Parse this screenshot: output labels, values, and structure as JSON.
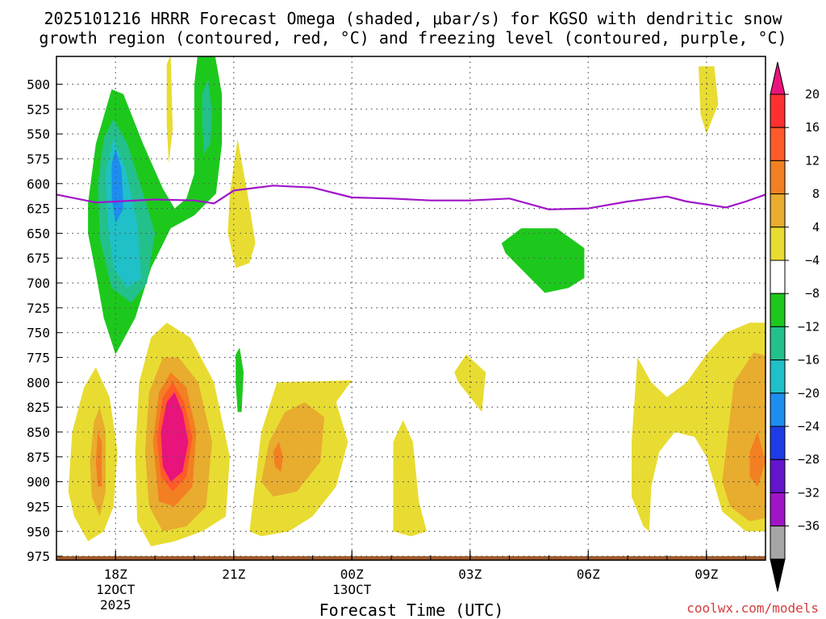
{
  "title": {
    "line1": "2025101216 HRRR Forecast Omega (shaded, μbar/s) for KGSO with dendritic snow",
    "line2": "growth region (contoured, red, °C) and freezing level (contoured, purple, °C)"
  },
  "credit": "coolwx.com/models",
  "chart_data": {
    "type": "heatmap",
    "title": "2025101216 HRRR Forecast Omega (shaded, μbar/s) for KGSO with dendritic snow growth region (contoured, red, °C) and freezing level (contoured, purple, °C)",
    "xlabel": "Forecast Time (UTC)",
    "ylabel": "",
    "x_unit": "hours since 2025-10-12 16Z",
    "xlim": [
      0.5,
      18.5
    ],
    "ylim": [
      979,
      472
    ],
    "x_ticks": [
      {
        "x": 2,
        "label": "18Z",
        "sub1": "12OCT",
        "sub2": "2025"
      },
      {
        "x": 5,
        "label": "21Z",
        "sub1": "",
        "sub2": ""
      },
      {
        "x": 8,
        "label": "00Z",
        "sub1": "13OCT",
        "sub2": ""
      },
      {
        "x": 11,
        "label": "03Z",
        "sub1": "",
        "sub2": ""
      },
      {
        "x": 14,
        "label": "06Z",
        "sub1": "",
        "sub2": ""
      },
      {
        "x": 17,
        "label": "09Z",
        "sub1": "",
        "sub2": ""
      }
    ],
    "y_ticks": [
      500,
      525,
      550,
      575,
      600,
      625,
      650,
      675,
      700,
      725,
      750,
      775,
      800,
      825,
      850,
      875,
      900,
      925,
      950,
      975
    ],
    "colorbar": {
      "labels": [
        "20",
        "16",
        "12",
        "8",
        "4",
        "−4",
        "−8",
        "−12",
        "−16",
        "−20",
        "−24",
        "−28",
        "−32",
        "−36"
      ],
      "bins": [
        {
          "lo": 20,
          "hi": 24,
          "color": "#ff3030"
        },
        {
          "lo": 16,
          "hi": 20,
          "color": "#ff5a2a"
        },
        {
          "lo": 12,
          "hi": 16,
          "color": "#f28022"
        },
        {
          "lo": 8,
          "hi": 12,
          "color": "#e8ac2e"
        },
        {
          "lo": 4,
          "hi": 8,
          "color": "#e8dc32"
        },
        {
          "lo": -4,
          "hi": 4,
          "color": "#ffffff"
        },
        {
          "lo": -8,
          "hi": -4,
          "color": "#1dc81d"
        },
        {
          "lo": -12,
          "hi": -8,
          "color": "#23c08c"
        },
        {
          "lo": -16,
          "hi": -12,
          "color": "#1fc0c8"
        },
        {
          "lo": -20,
          "hi": -16,
          "color": "#1c8ef0"
        },
        {
          "lo": -24,
          "hi": -20,
          "color": "#1e3ce6"
        },
        {
          "lo": -28,
          "hi": -24,
          "color": "#6414cc"
        },
        {
          "lo": -32,
          "hi": -28,
          "color": "#a014c8"
        },
        {
          "lo": -36,
          "hi": -32,
          "color": "#a5a5a5"
        }
      ],
      "top_arrow_color": "#e8147c",
      "bottom_arrow_color": "#000000"
    },
    "omega_regions": [
      {
        "color": "#1dc81d",
        "points": [
          [
            1.3,
            620
          ],
          [
            1.5,
            560
          ],
          [
            1.9,
            505
          ],
          [
            2.2,
            510
          ],
          [
            2.7,
            560
          ],
          [
            3.2,
            605
          ],
          [
            3.5,
            625
          ],
          [
            3.8,
            615
          ],
          [
            4.0,
            590
          ],
          [
            4.0,
            500
          ],
          [
            4.1,
            465
          ],
          [
            4.5,
            465
          ],
          [
            4.7,
            510
          ],
          [
            4.7,
            560
          ],
          [
            4.55,
            610
          ],
          [
            4.0,
            632
          ],
          [
            3.4,
            645
          ],
          [
            2.9,
            685
          ],
          [
            2.5,
            735
          ],
          [
            2.0,
            772
          ],
          [
            1.7,
            735
          ],
          [
            1.5,
            690
          ],
          [
            1.3,
            650
          ]
        ]
      },
      {
        "color": "#23c08c",
        "points": [
          [
            1.55,
            600
          ],
          [
            1.7,
            555
          ],
          [
            1.95,
            535
          ],
          [
            2.3,
            560
          ],
          [
            2.7,
            610
          ],
          [
            3.0,
            650
          ],
          [
            2.8,
            700
          ],
          [
            2.4,
            720
          ],
          [
            1.9,
            705
          ],
          [
            1.6,
            655
          ]
        ]
      },
      {
        "color": "#1fc0c8",
        "points": [
          [
            1.75,
            590
          ],
          [
            1.95,
            555
          ],
          [
            2.25,
            585
          ],
          [
            2.55,
            640
          ],
          [
            2.65,
            695
          ],
          [
            2.3,
            705
          ],
          [
            1.95,
            685
          ],
          [
            1.8,
            640
          ]
        ]
      },
      {
        "color": "#1c8ef0",
        "points": [
          [
            1.9,
            580
          ],
          [
            2.0,
            565
          ],
          [
            2.15,
            585
          ],
          [
            2.2,
            625
          ],
          [
            2.0,
            640
          ],
          [
            1.9,
            615
          ]
        ]
      },
      {
        "color": "#23c08c",
        "points": [
          [
            4.2,
            510
          ],
          [
            4.35,
            495
          ],
          [
            4.45,
            530
          ],
          [
            4.4,
            560
          ],
          [
            4.25,
            570
          ],
          [
            4.2,
            540
          ]
        ]
      },
      {
        "color": "#1dc81d",
        "points": [
          [
            11.8,
            660
          ],
          [
            12.3,
            645
          ],
          [
            13.2,
            645
          ],
          [
            13.9,
            665
          ],
          [
            13.9,
            695
          ],
          [
            13.5,
            705
          ],
          [
            12.9,
            710
          ],
          [
            12.4,
            690
          ],
          [
            11.9,
            670
          ]
        ]
      },
      {
        "color": "#1dc81d",
        "points": [
          [
            5.05,
            772
          ],
          [
            5.15,
            765
          ],
          [
            5.25,
            790
          ],
          [
            5.2,
            830
          ],
          [
            5.1,
            830
          ],
          [
            5.05,
            800
          ]
        ]
      },
      {
        "color": "#e8dc32",
        "points": [
          [
            3.3,
            480
          ],
          [
            3.4,
            470
          ],
          [
            3.45,
            545
          ],
          [
            3.35,
            580
          ],
          [
            3.3,
            540
          ]
        ]
      },
      {
        "color": "#e8dc32",
        "points": [
          [
            4.9,
            610
          ],
          [
            5.1,
            555
          ],
          [
            5.35,
            610
          ],
          [
            5.55,
            660
          ],
          [
            5.4,
            680
          ],
          [
            5.05,
            685
          ],
          [
            4.85,
            650
          ]
        ]
      },
      {
        "color": "#e8dc32",
        "points": [
          [
            16.8,
            482
          ],
          [
            17.2,
            482
          ],
          [
            17.3,
            520
          ],
          [
            17.0,
            550
          ],
          [
            16.85,
            530
          ]
        ]
      },
      {
        "color": "#e8dc32",
        "points": [
          [
            10.6,
            790
          ],
          [
            10.9,
            772
          ],
          [
            11.4,
            790
          ],
          [
            11.3,
            830
          ],
          [
            11.0,
            815
          ],
          [
            10.7,
            800
          ]
        ]
      },
      {
        "color": "#e8dc32",
        "points": [
          [
            0.8,
            910
          ],
          [
            0.9,
            850
          ],
          [
            1.2,
            805
          ],
          [
            1.5,
            785
          ],
          [
            1.85,
            815
          ],
          [
            2.05,
            870
          ],
          [
            1.95,
            925
          ],
          [
            1.7,
            950
          ],
          [
            1.3,
            960
          ],
          [
            0.95,
            935
          ]
        ]
      },
      {
        "color": "#e8ac2e",
        "points": [
          [
            1.35,
            880
          ],
          [
            1.45,
            840
          ],
          [
            1.6,
            825
          ],
          [
            1.75,
            850
          ],
          [
            1.75,
            910
          ],
          [
            1.6,
            935
          ],
          [
            1.4,
            915
          ]
        ]
      },
      {
        "color": "#f28022",
        "points": [
          [
            1.5,
            880
          ],
          [
            1.55,
            850
          ],
          [
            1.65,
            860
          ],
          [
            1.65,
            905
          ],
          [
            1.55,
            905
          ]
        ]
      },
      {
        "color": "#e8dc32",
        "points": [
          [
            2.5,
            870
          ],
          [
            2.6,
            800
          ],
          [
            2.9,
            755
          ],
          [
            3.3,
            740
          ],
          [
            3.9,
            755
          ],
          [
            4.5,
            800
          ],
          [
            4.9,
            875
          ],
          [
            4.8,
            935
          ],
          [
            4.2,
            950
          ],
          [
            3.5,
            960
          ],
          [
            2.9,
            965
          ],
          [
            2.55,
            940
          ]
        ]
      },
      {
        "color": "#e8ac2e",
        "points": [
          [
            2.75,
            870
          ],
          [
            2.85,
            810
          ],
          [
            3.2,
            775
          ],
          [
            3.6,
            775
          ],
          [
            4.1,
            800
          ],
          [
            4.45,
            860
          ],
          [
            4.3,
            925
          ],
          [
            3.8,
            945
          ],
          [
            3.2,
            950
          ],
          [
            2.85,
            925
          ]
        ]
      },
      {
        "color": "#f28022",
        "points": [
          [
            2.95,
            860
          ],
          [
            3.1,
            810
          ],
          [
            3.4,
            790
          ],
          [
            3.8,
            805
          ],
          [
            4.05,
            850
          ],
          [
            3.95,
            905
          ],
          [
            3.5,
            925
          ],
          [
            3.1,
            920
          ]
        ]
      },
      {
        "color": "#ff5a2a",
        "points": [
          [
            3.05,
            855
          ],
          [
            3.2,
            815
          ],
          [
            3.45,
            800
          ],
          [
            3.75,
            820
          ],
          [
            3.95,
            855
          ],
          [
            3.8,
            895
          ],
          [
            3.45,
            910
          ],
          [
            3.15,
            895
          ]
        ]
      },
      {
        "color": "#e8147c",
        "points": [
          [
            3.15,
            850
          ],
          [
            3.3,
            820
          ],
          [
            3.5,
            810
          ],
          [
            3.7,
            830
          ],
          [
            3.85,
            860
          ],
          [
            3.7,
            890
          ],
          [
            3.4,
            900
          ],
          [
            3.2,
            885
          ]
        ]
      },
      {
        "color": "#e8dc32",
        "points": [
          [
            5.4,
            950
          ],
          [
            5.7,
            850
          ],
          [
            6.1,
            800
          ],
          [
            8.0,
            798
          ],
          [
            7.6,
            820
          ],
          [
            7.9,
            860
          ],
          [
            7.6,
            905
          ],
          [
            7.0,
            935
          ],
          [
            6.4,
            950
          ],
          [
            5.7,
            955
          ]
        ]
      },
      {
        "color": "#e8ac2e",
        "points": [
          [
            5.7,
            900
          ],
          [
            5.9,
            860
          ],
          [
            6.3,
            830
          ],
          [
            6.8,
            820
          ],
          [
            7.3,
            835
          ],
          [
            7.2,
            880
          ],
          [
            6.6,
            910
          ],
          [
            6.0,
            915
          ]
        ]
      },
      {
        "color": "#f28022",
        "points": [
          [
            6.0,
            870
          ],
          [
            6.15,
            860
          ],
          [
            6.25,
            875
          ],
          [
            6.2,
            890
          ],
          [
            6.05,
            885
          ]
        ]
      },
      {
        "color": "#e8dc32",
        "points": [
          [
            9.05,
            950
          ],
          [
            9.05,
            860
          ],
          [
            9.3,
            838
          ],
          [
            9.55,
            860
          ],
          [
            9.7,
            920
          ],
          [
            9.9,
            950
          ],
          [
            9.5,
            955
          ]
        ]
      },
      {
        "color": "#e8dc32",
        "points": [
          [
            15.1,
            860
          ],
          [
            15.25,
            775
          ],
          [
            15.6,
            800
          ],
          [
            16.0,
            815
          ],
          [
            16.5,
            800
          ],
          [
            17.0,
            772
          ],
          [
            17.5,
            750
          ],
          [
            18.1,
            740
          ],
          [
            18.7,
            740
          ],
          [
            18.7,
            950
          ],
          [
            18.0,
            950
          ],
          [
            17.4,
            930
          ],
          [
            17.0,
            875
          ],
          [
            16.7,
            855
          ],
          [
            16.2,
            850
          ],
          [
            15.8,
            870
          ],
          [
            15.6,
            905
          ],
          [
            15.55,
            950
          ],
          [
            15.4,
            945
          ],
          [
            15.1,
            915
          ]
        ]
      },
      {
        "color": "#e8ac2e",
        "points": [
          [
            17.4,
            900
          ],
          [
            17.7,
            800
          ],
          [
            18.2,
            770
          ],
          [
            18.7,
            775
          ],
          [
            18.7,
            935
          ],
          [
            18.1,
            940
          ],
          [
            17.6,
            925
          ]
        ]
      },
      {
        "color": "#f28022",
        "points": [
          [
            18.1,
            870
          ],
          [
            18.3,
            850
          ],
          [
            18.5,
            880
          ],
          [
            18.3,
            905
          ],
          [
            18.1,
            895
          ]
        ]
      }
    ],
    "freezing_level": {
      "color": "#a014c8",
      "x": [
        0.5,
        1.5,
        2.0,
        3.0,
        4.0,
        4.5,
        5.0,
        6.0,
        7.0,
        8.0,
        9.0,
        10.0,
        11.0,
        12.0,
        13.0,
        14.0,
        15.0,
        16.0,
        16.5,
        17.0,
        17.5,
        18.0,
        18.5
      ],
      "y": [
        611,
        619,
        618,
        616,
        617,
        620,
        607,
        602,
        604,
        614,
        615,
        617,
        617,
        615,
        626,
        625,
        618,
        613,
        618,
        621,
        624,
        618,
        611
      ]
    },
    "surface_band": {
      "color": "#a05a2c",
      "from_hpa": 975,
      "to_hpa": 981
    }
  }
}
